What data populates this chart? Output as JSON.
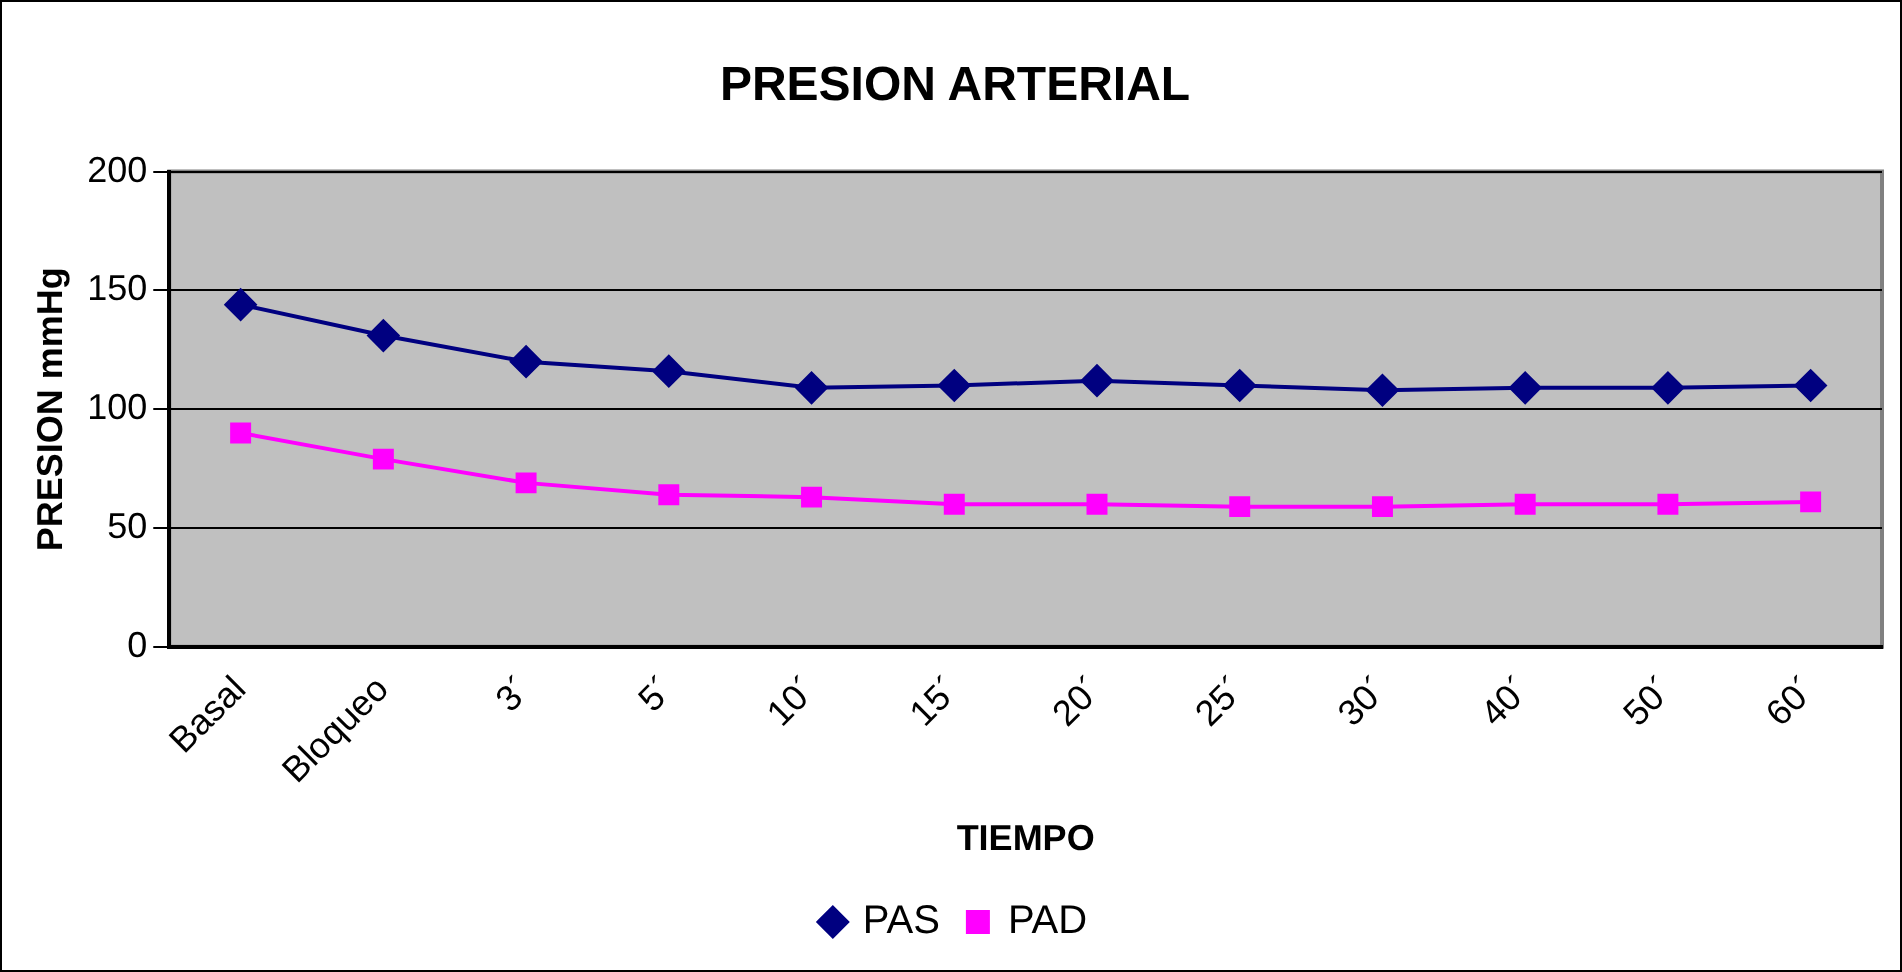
{
  "chart_data": {
    "type": "line",
    "title": "PRESION ARTERIAL",
    "xlabel": "TIEMPO",
    "ylabel": "PRESION mmHg",
    "categories": [
      "Basal",
      "Bloqueo",
      "3´",
      "5´",
      "10´",
      "15´",
      "20´",
      "25´",
      "30´",
      "40´",
      "50´",
      "60´"
    ],
    "series": [
      {
        "name": "PAS",
        "color": "#000080",
        "marker": "diamond",
        "values": [
          144,
          131,
          120,
          116,
          109,
          110,
          112,
          110,
          108,
          109,
          109,
          110
        ]
      },
      {
        "name": "PAD",
        "color": "#ff00ff",
        "marker": "square",
        "values": [
          90,
          79,
          69,
          64,
          63,
          60,
          60,
          59,
          59,
          60,
          60,
          61
        ]
      }
    ],
    "ylim": [
      0,
      200
    ],
    "yticks": [
      0,
      50,
      100,
      150,
      200
    ],
    "grid": "y",
    "legend": "bottom"
  }
}
